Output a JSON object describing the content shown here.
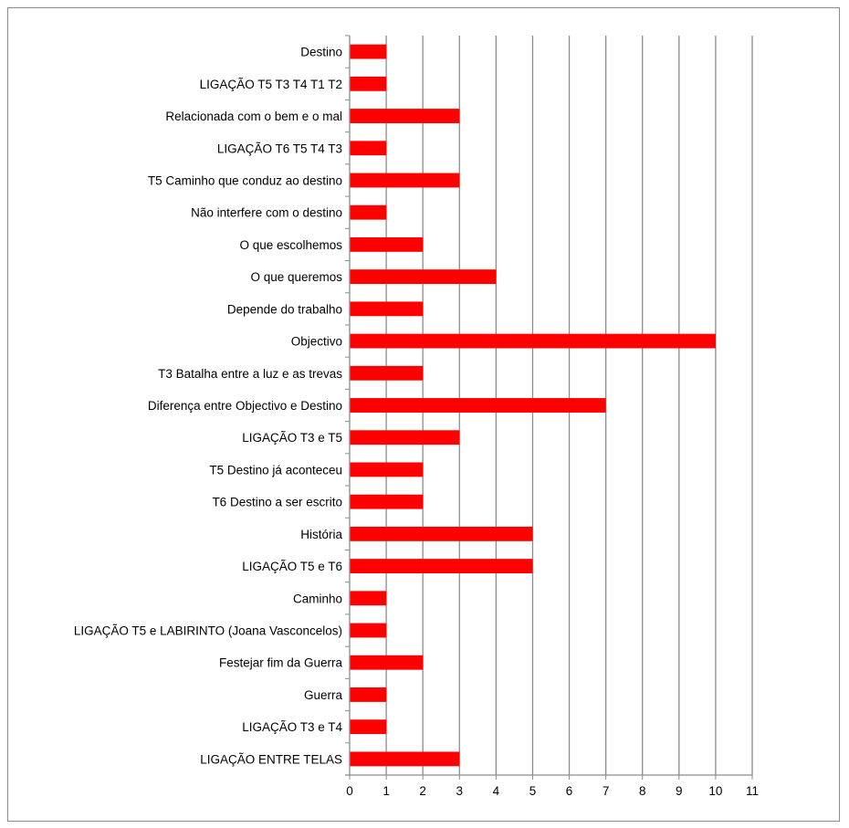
{
  "chart_data": {
    "type": "bar",
    "orientation": "horizontal",
    "categories": [
      "Destino",
      "LIGAÇÃO  T5 T3 T4 T1 T2",
      "Relacionada com o bem e o mal",
      "LIGAÇÃO T6 T5 T4 T3",
      "T5 Caminho que conduz ao destino",
      "Não interfere com o destino",
      "O que escolhemos",
      "O que queremos",
      "Depende do trabalho",
      "Objectivo",
      "T3 Batalha entre a luz e as trevas",
      "Diferença entre Objectivo e Destino",
      "LIGAÇÃO T3 e T5",
      "T5 Destino já aconteceu",
      "T6 Destino a ser escrito",
      "História",
      "LIGAÇÃO T5 e T6",
      "Caminho",
      "LIGAÇÃO T5 e LABIRINTO (Joana Vasconcelos)",
      "Festejar fim da Guerra",
      "Guerra",
      "LIGAÇÃO T3 e T4",
      "LIGAÇÃO ENTRE TELAS"
    ],
    "values": [
      1,
      1,
      3,
      1,
      3,
      1,
      2,
      4,
      2,
      10,
      2,
      7,
      3,
      2,
      2,
      5,
      5,
      1,
      1,
      2,
      1,
      1,
      3
    ],
    "xlim": [
      0,
      11
    ],
    "x_ticks": [
      "0",
      "1",
      "2",
      "3",
      "4",
      "5",
      "6",
      "7",
      "8",
      "9",
      "10",
      "11"
    ],
    "grid": "vertical",
    "legend": "none",
    "bar_color": "#ff0000",
    "grid_color": "#8c8c8c",
    "title": "",
    "xlabel": "",
    "ylabel": ""
  }
}
